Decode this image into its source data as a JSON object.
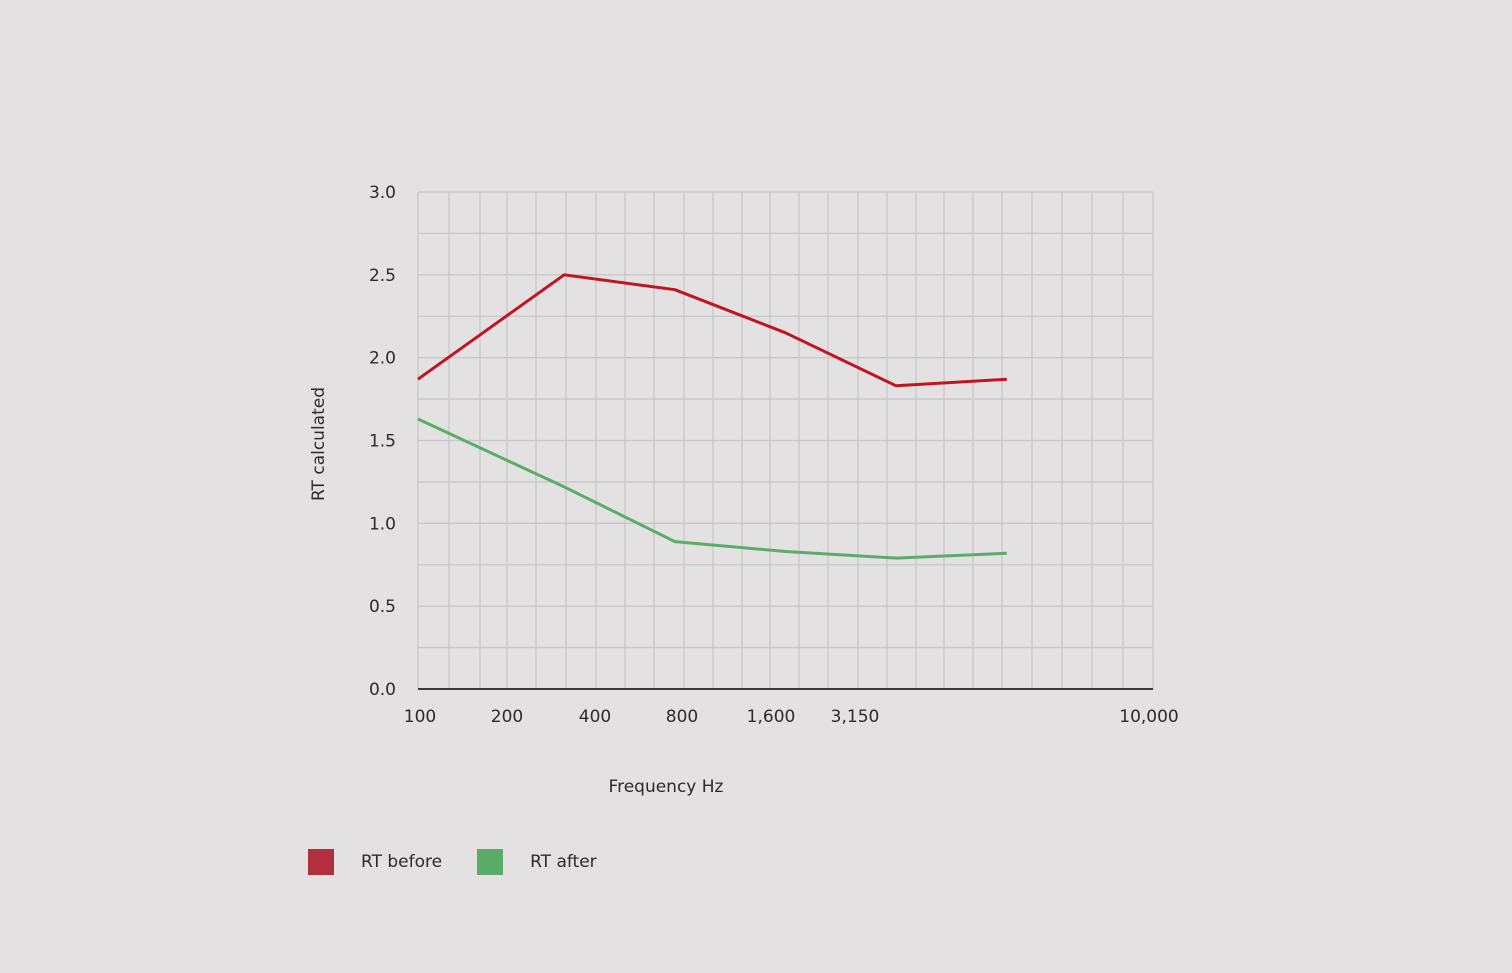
{
  "chart_data": {
    "type": "line",
    "title": "",
    "xlabel": "Frequency Hz",
    "ylabel": "RT calculated",
    "xscale": "log",
    "xlim": [
      100,
      10000
    ],
    "ylim": [
      0,
      3.0
    ],
    "grid": true,
    "legend_position": "bottom-left",
    "x_tick_labels": [
      "100",
      "200",
      "400",
      "800",
      "1,600",
      "3,150",
      "10,000"
    ],
    "y_tick_labels": [
      "0.0",
      "0.5",
      "1.0",
      "1.5",
      "2.0",
      "2.5",
      "3.0"
    ],
    "series": [
      {
        "name": "RT before",
        "color": "#c0141f",
        "legend_color": "#b22f3e",
        "x": [
          100,
          250,
          500,
          1000,
          2000,
          4000
        ],
        "y": [
          1.87,
          2.5,
          2.41,
          2.15,
          1.83,
          1.87
        ]
      },
      {
        "name": "RT after",
        "color": "#5aad69",
        "legend_color": "#5aad69",
        "x": [
          100,
          250,
          500,
          1000,
          2000,
          4000
        ],
        "y": [
          1.63,
          1.22,
          0.89,
          0.83,
          0.79,
          0.82
        ]
      }
    ]
  }
}
